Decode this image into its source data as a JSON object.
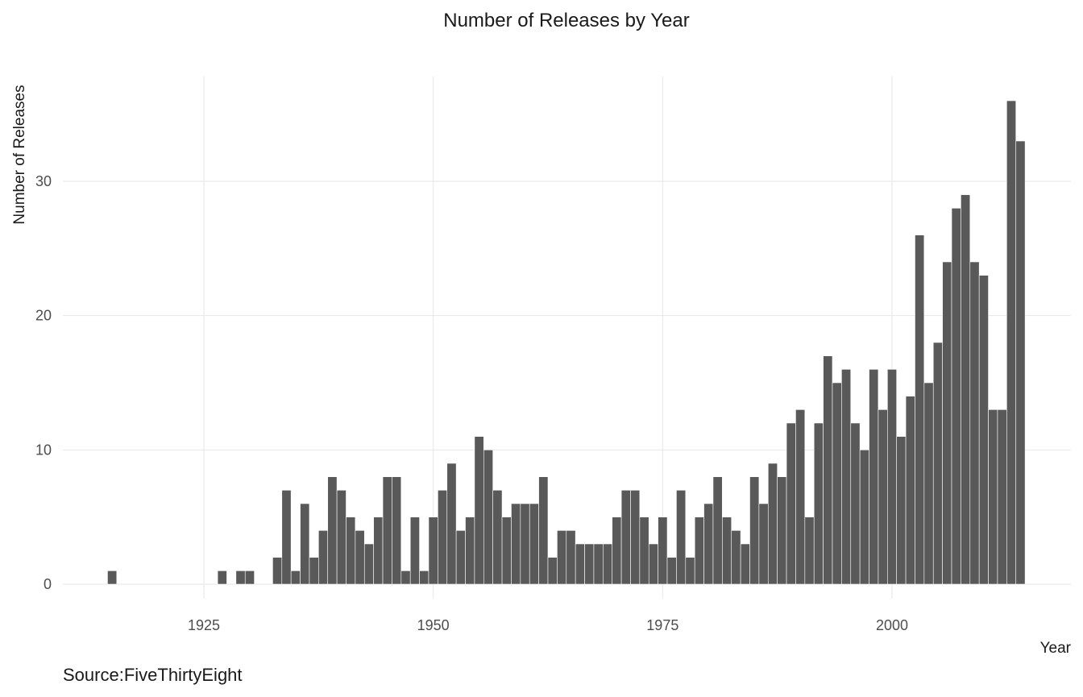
{
  "chart_data": {
    "type": "bar",
    "title": "Number of Releases by Year",
    "xlabel": "Year",
    "ylabel": "Number of Releases",
    "caption": "Source:FiveThirtyEight",
    "bar_color": "#595959",
    "grid_color": "#e6e6e6",
    "grid": true,
    "xlim": [
      1909.5,
      1918.5
    ],
    "ylim": [
      0,
      38
    ],
    "x_ticks": [
      1925,
      1950,
      1975,
      2000
    ],
    "y_ticks": [
      0,
      10,
      20,
      30
    ],
    "x": [
      1915,
      1927,
      1929,
      1930,
      1933,
      1934,
      1935,
      1936,
      1937,
      1938,
      1939,
      1940,
      1941,
      1942,
      1943,
      1944,
      1945,
      1946,
      1947,
      1948,
      1949,
      1950,
      1951,
      1952,
      1953,
      1954,
      1955,
      1956,
      1957,
      1958,
      1959,
      1960,
      1961,
      1962,
      1963,
      1964,
      1965,
      1966,
      1967,
      1968,
      1969,
      1970,
      1971,
      1972,
      1973,
      1974,
      1975,
      1976,
      1977,
      1978,
      1979,
      1980,
      1981,
      1982,
      1983,
      1984,
      1985,
      1986,
      1987,
      1988,
      1989,
      1990,
      1991,
      1992,
      1993,
      1994,
      1995,
      1996,
      1997,
      1998,
      1999,
      2000,
      2001,
      2002,
      2003,
      2004,
      2005,
      2006,
      2007,
      2008,
      2009,
      2010,
      2011,
      2012,
      2013,
      2014
    ],
    "values": [
      1,
      1,
      1,
      1,
      2,
      7,
      1,
      6,
      2,
      4,
      8,
      7,
      5,
      4,
      3,
      5,
      8,
      8,
      1,
      5,
      1,
      5,
      7,
      9,
      4,
      5,
      11,
      10,
      7,
      5,
      6,
      6,
      6,
      8,
      2,
      4,
      4,
      3,
      3,
      3,
      3,
      5,
      7,
      7,
      5,
      3,
      5,
      2,
      7,
      2,
      5,
      6,
      8,
      5,
      4,
      3,
      8,
      6,
      9,
      8,
      12,
      13,
      5,
      12,
      17,
      15,
      16,
      12,
      10,
      16,
      13,
      16,
      11,
      14,
      26,
      15,
      18,
      24,
      28,
      29,
      24,
      23,
      13,
      13,
      36,
      33
    ]
  }
}
